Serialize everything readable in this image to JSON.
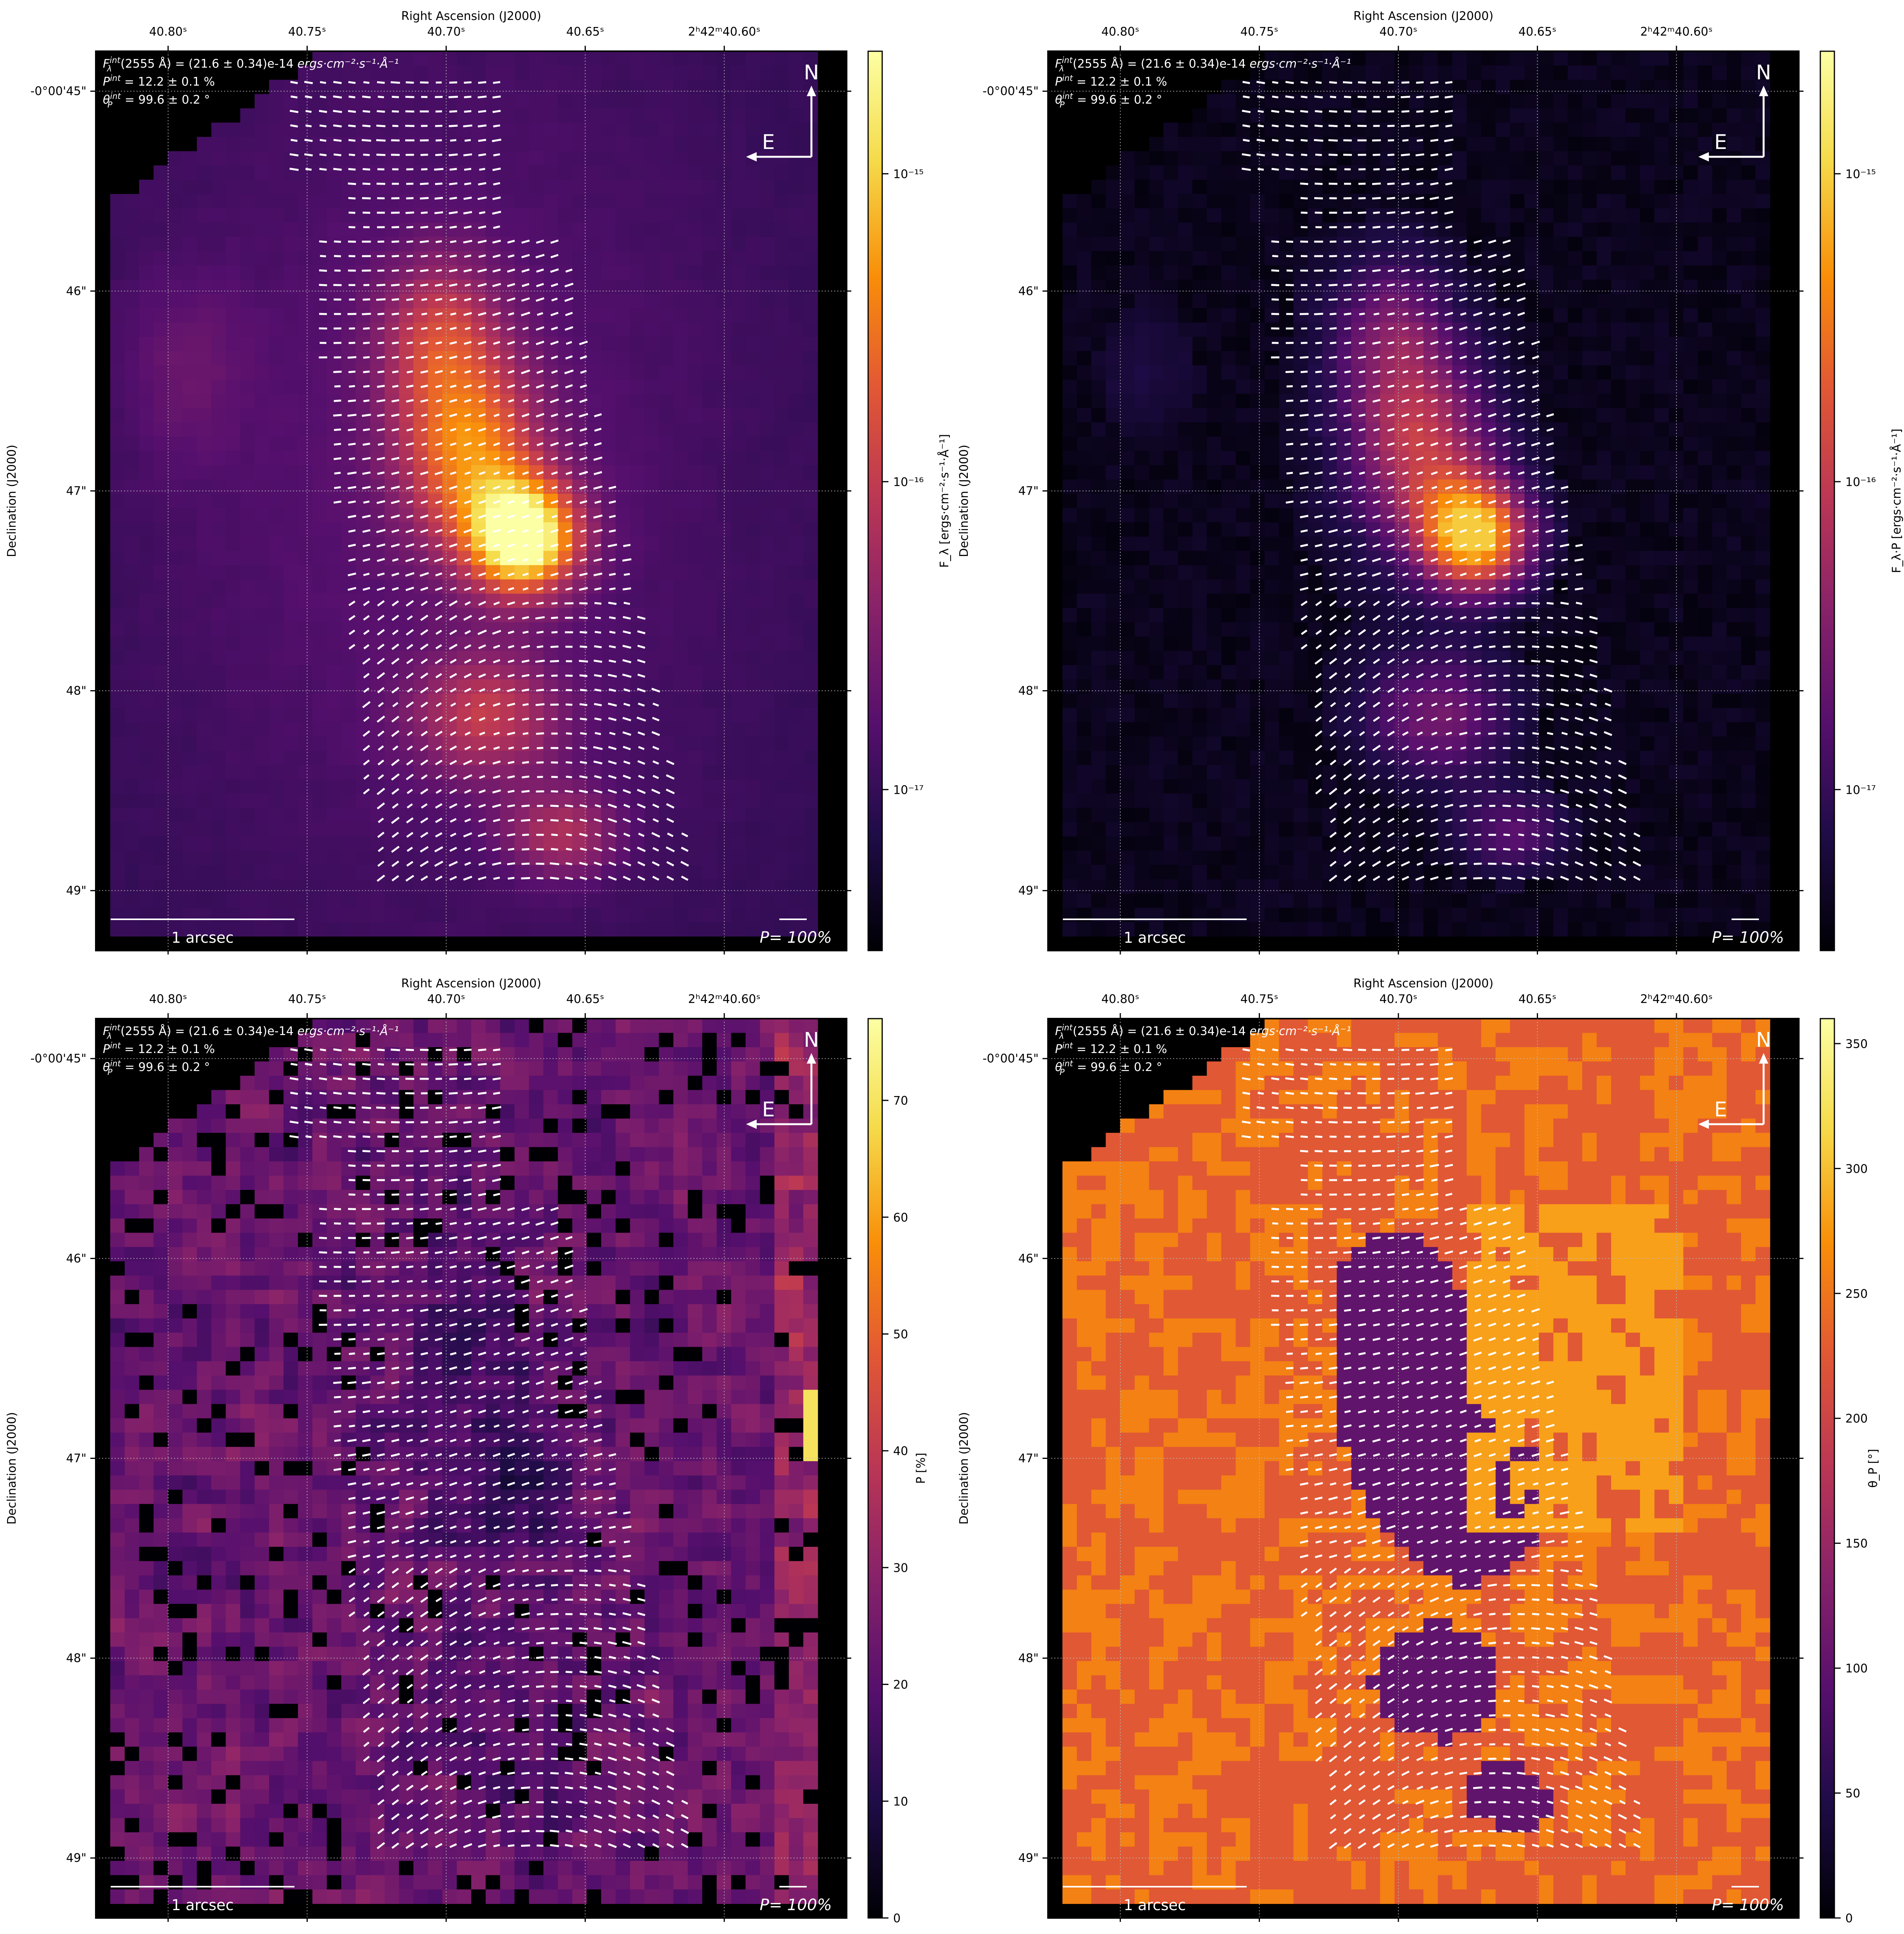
{
  "figure": {
    "common": {
      "x_label": "Right Ascension (J2000)",
      "y_label": "Declination (J2000)",
      "x_ticks": [
        "40.80ˢ",
        "40.75ˢ",
        "40.70ˢ",
        "40.65ˢ",
        "2ʰ42ᵐ40.60ˢ"
      ],
      "y_ticks": [
        "-0°00'45\"",
        "46\"",
        "47\"",
        "48\"",
        "49\""
      ],
      "info_line1_prefix": "F",
      "info_line1_sub": "λ",
      "info_line1_sup": "int",
      "info_line1_rest": "(2555 Å) = (21.6 ± 0.34)e-14 ",
      "info_line1_units": "ergs·cm⁻²·s⁻¹·Å⁻¹",
      "info_line2_main": "P",
      "info_line2_sup": "int",
      "info_line2_rest": " = 12.2 ± 0.1 %",
      "info_line3_main": "θ",
      "info_line3_sub": "P",
      "info_line3_sup": "int",
      "info_line3_rest": " = 99.6 ± 0.2 °",
      "compass_north": "N",
      "compass_east": "E",
      "scale_bar_label": "1 arcsec",
      "pol_ref_label": "P= 100%"
    },
    "colors": {
      "colormap": "inferno",
      "vectors": "#ffffff",
      "background": "#000000"
    },
    "panels": [
      {
        "id": "flux",
        "cbar_label": "F_λ [ergs·cm⁻²·s⁻¹·Å⁻¹]",
        "cbar_ticks": [
          "10⁻¹⁵",
          "10⁻¹⁶",
          "10⁻¹⁷"
        ]
      },
      {
        "id": "pol_flux",
        "cbar_label": "F_λ·P [ergs·cm⁻²·s⁻¹·Å⁻¹]",
        "cbar_ticks": [
          "10⁻¹⁵",
          "10⁻¹⁶",
          "10⁻¹⁷"
        ]
      },
      {
        "id": "pol_degree",
        "cbar_label": "P [%]",
        "cbar_ticks": [
          "70",
          "60",
          "50",
          "40",
          "30",
          "20",
          "10",
          "0"
        ]
      },
      {
        "id": "pol_angle",
        "cbar_label": "θ_P [°]",
        "cbar_ticks": [
          "350",
          "300",
          "250",
          "200",
          "150",
          "100",
          "50",
          "0"
        ]
      }
    ]
  },
  "chart_data": [
    {
      "type": "heatmap",
      "title": "",
      "quantity": "F_λ",
      "scale": "log",
      "cbar_range": [
        3e-18,
        2.5e-15
      ],
      "cbar_ticks": [
        1e-15,
        1e-16,
        1e-17
      ],
      "xlabel": "Right Ascension (J2000)",
      "ylabel": "Declination (J2000)",
      "x_ticks_s": [
        40.8,
        40.75,
        40.7,
        40.65,
        40.6
      ],
      "y_ticks_arcsec": [
        -45,
        -46,
        -47,
        -48,
        -49
      ],
      "xlim_s": [
        40.826,
        40.556
      ],
      "ylim_arcsec": [
        -44.8,
        -49.3
      ],
      "peak_flux": 2.5e-15,
      "peak_position": {
        "ra_s": 40.677,
        "dec_arcsec": -47.35
      },
      "integrated": {
        "wavelength": "2555 Å",
        "flux_e14": 21.6,
        "flux_err_e14": 0.34,
        "P_percent": 12.2,
        "P_err": 0.1,
        "theta_deg": 99.6,
        "theta_err": 0.2
      },
      "grid": true
    },
    {
      "type": "heatmap",
      "title": "",
      "quantity": "F_λ·P",
      "scale": "log",
      "cbar_range": [
        3e-18,
        2.5e-15
      ],
      "cbar_ticks": [
        1e-15,
        1e-16,
        1e-17
      ],
      "xlabel": "Right Ascension (J2000)",
      "ylabel": "Declination (J2000)",
      "x_ticks_s": [
        40.8,
        40.75,
        40.7,
        40.65,
        40.6
      ],
      "y_ticks_arcsec": [
        -45,
        -46,
        -47,
        -48,
        -49
      ],
      "xlim_s": [
        40.826,
        40.556
      ],
      "ylim_arcsec": [
        -44.8,
        -49.3
      ],
      "peak_flux": 6e-16,
      "peak_position": {
        "ra_s": 40.665,
        "dec_arcsec": -47.35
      },
      "grid": true
    },
    {
      "type": "heatmap",
      "title": "",
      "quantity": "P",
      "unit": "%",
      "scale": "linear",
      "cbar_range": [
        0,
        77
      ],
      "cbar_ticks": [
        0,
        10,
        20,
        30,
        40,
        50,
        60,
        70
      ],
      "xlabel": "Right Ascension (J2000)",
      "ylabel": "Declination (J2000)",
      "x_ticks_s": [
        40.8,
        40.75,
        40.7,
        40.65,
        40.6
      ],
      "y_ticks_arcsec": [
        -45,
        -46,
        -47,
        -48,
        -49
      ],
      "xlim_s": [
        40.826,
        40.556
      ],
      "ylim_arcsec": [
        -44.8,
        -49.3
      ],
      "typical_core_P": 12,
      "max_edge_P": 77,
      "grid": true
    },
    {
      "type": "heatmap",
      "title": "",
      "quantity": "θ_P",
      "unit": "°",
      "scale": "linear",
      "cbar_range": [
        0,
        360
      ],
      "cbar_ticks": [
        0,
        50,
        100,
        150,
        200,
        250,
        300,
        350
      ],
      "xlabel": "Right Ascension (J2000)",
      "ylabel": "Declination (J2000)",
      "x_ticks_s": [
        40.8,
        40.75,
        40.7,
        40.65,
        40.6
      ],
      "y_ticks_arcsec": [
        -45,
        -46,
        -47,
        -48,
        -49
      ],
      "xlim_s": [
        40.826,
        40.556
      ],
      "ylim_arcsec": [
        -44.8,
        -49.3
      ],
      "dominant_values_deg": [
        100,
        280,
        220
      ],
      "grid": true
    }
  ]
}
